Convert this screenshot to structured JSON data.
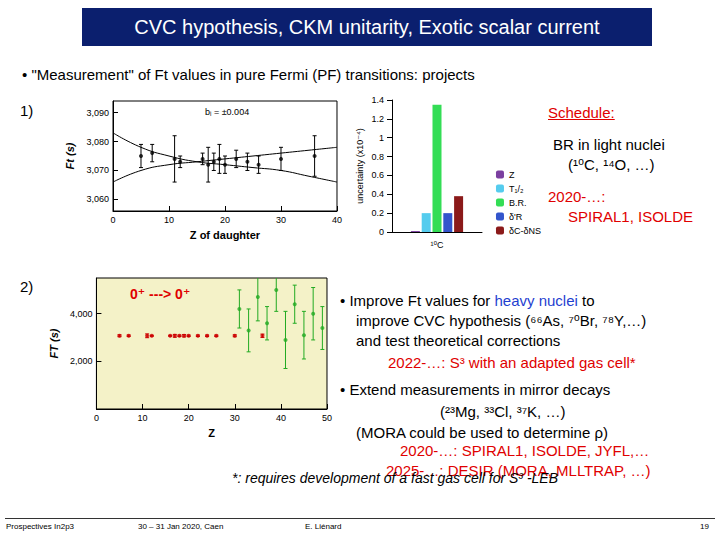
{
  "title": "CVC hypothesis, CKM unitarity, Exotic scalar current",
  "intro": "• \"Measurement\" of Ft values in pure Fermi (PF) transitions: projects",
  "project_labels": [
    "1)",
    "2)"
  ],
  "schedule_1": [
    [
      {
        "text": "Schedule:",
        "color": "#e00000",
        "underline": true
      }
    ],
    [
      {
        "text": "BR in light nuclei"
      }
    ],
    [
      {
        "text": "(¹⁰C, ¹⁴O, …)"
      }
    ],
    [
      {
        "text": "2020-…:",
        "color": "#e00000"
      }
    ],
    [
      {
        "text": "SPIRAL1, ISOLDE",
        "color": "#e00000"
      }
    ]
  ],
  "bullets_2": [
    [
      {
        "text": "• Improve Ft values for "
      },
      {
        "text": "heavy nuclei",
        "color": "#1f3fd0"
      },
      {
        "text": " to"
      }
    ],
    [
      {
        "text": "improve CVC hypothesis    (⁶⁶As, ⁷⁰Br, ⁷⁸Y,…)"
      }
    ],
    [
      {
        "text": "and test theoretical corrections"
      }
    ],
    [
      {
        "text": "2022-…: S³ with an adapted gas cell*",
        "color": "#e00000"
      }
    ],
    [
      {
        "text": "• Extend measurements in mirror decays"
      }
    ],
    [
      {
        "text": "(²³Mg, ³³Cl, ³⁷K, …)"
      }
    ],
    [
      {
        "text": "(MORA could be used to determine ρ)"
      }
    ]
  ],
  "schedule_2": [
    [
      {
        "text": "2020-…: SPIRAL1, ISOLDE, JYFL,…",
        "color": "#e00000"
      }
    ],
    [
      {
        "text": "2025-…: DESIR (MORA, MLLTRAP, …)",
        "color": "#e00000"
      }
    ]
  ],
  "footnote": "*: requires development of a fast gas cell for S³ -LEB",
  "footer": [
    "Prospectives In2p3",
    "30 – 31 Jan 2020, Caen",
    "E. Liénard",
    "19"
  ],
  "chart_data": [
    {
      "type": "scatter",
      "ylabel": "Ft (s)",
      "xlabel": "Z of daughter",
      "annotation": "bᵢ = ±0.004",
      "xlim": [
        0,
        40
      ],
      "xticks": [
        0,
        10,
        20,
        30,
        40
      ],
      "ylim": [
        3056,
        3094
      ],
      "yticks": [
        3060,
        3070,
        3080,
        3090
      ],
      "series": [
        {
          "type": "scatter",
          "color": "#000000",
          "x": [
            5,
            7,
            11,
            12,
            16,
            17,
            18,
            19,
            20,
            22,
            24,
            26,
            30,
            36
          ],
          "values": [
            3075,
            3076,
            3074,
            3073,
            3074,
            3072,
            3073,
            3074,
            3072,
            3074,
            3073,
            3072,
            3074,
            3075
          ],
          "errors": [
            4,
            3,
            8,
            2,
            2,
            6,
            3,
            5,
            3,
            3,
            3,
            3,
            4,
            7
          ]
        },
        {
          "type": "line",
          "color": "#000000",
          "x": [
            0,
            5,
            10,
            15,
            20,
            25,
            30,
            35,
            40
          ],
          "values": [
            3066,
            3070,
            3072,
            3073,
            3074,
            3075,
            3076,
            3077,
            3078
          ]
        },
        {
          "type": "line",
          "color": "#000000",
          "x": [
            0,
            5,
            10,
            15,
            20,
            25,
            30,
            35,
            40
          ],
          "values": [
            3083,
            3078,
            3075,
            3073,
            3072,
            3071,
            3070,
            3068,
            3066
          ]
        }
      ]
    },
    {
      "type": "bar",
      "ylabel": "uncertainty (x10⁻⁴)",
      "categories": [
        "¹⁰C"
      ],
      "ylim": [
        0,
        1.4
      ],
      "yticks": [
        0,
        0.2,
        0.4,
        0.6,
        0.8,
        1,
        1.2,
        1.4
      ],
      "legend": "right",
      "series": [
        {
          "name": "Z",
          "color": "#7b3fa0",
          "values": [
            0.01
          ]
        },
        {
          "name": "T₁/₂",
          "color": "#55ccee",
          "values": [
            0.2
          ]
        },
        {
          "name": "B.R.",
          "color": "#33dd55",
          "values": [
            1.35
          ]
        },
        {
          "name": "δ'R",
          "color": "#3355cc",
          "values": [
            0.2
          ]
        },
        {
          "name": "δC-δNS",
          "color": "#8b1a1a",
          "values": [
            0.38
          ]
        }
      ]
    },
    {
      "type": "scatter",
      "title": "0⁺ ---> 0⁺",
      "ylabel": "FT (s)",
      "xlabel": "Z",
      "xlim": [
        0,
        50
      ],
      "xticks": [
        0,
        10,
        20,
        30,
        40,
        50
      ],
      "ylim": [
        0,
        5500
      ],
      "yticks": [
        2000,
        4000
      ],
      "series": [
        {
          "type": "scatter",
          "color": "#cc0000",
          "x": [
            5,
            7,
            11,
            12,
            16,
            17,
            18,
            19,
            20,
            22,
            24,
            26,
            30,
            36
          ],
          "values": [
            3075,
            3076,
            3074,
            3073,
            3074,
            3072,
            3073,
            3074,
            3072,
            3074,
            3073,
            3072,
            3074,
            3075
          ],
          "errors": [
            40,
            30,
            80,
            20,
            20,
            60,
            30,
            50,
            30,
            30,
            30,
            30,
            40,
            70
          ]
        },
        {
          "type": "scatter",
          "color": "#22aa22",
          "x": [
            31,
            33,
            35,
            37,
            39,
            41,
            43,
            45,
            47,
            49
          ],
          "values": [
            4200,
            3300,
            4700,
            3600,
            5000,
            2900,
            4400,
            3100,
            4000,
            3400
          ],
          "errors": [
            800,
            900,
            1000,
            700,
            900,
            1200,
            800,
            1000,
            1100,
            900
          ]
        }
      ]
    }
  ]
}
